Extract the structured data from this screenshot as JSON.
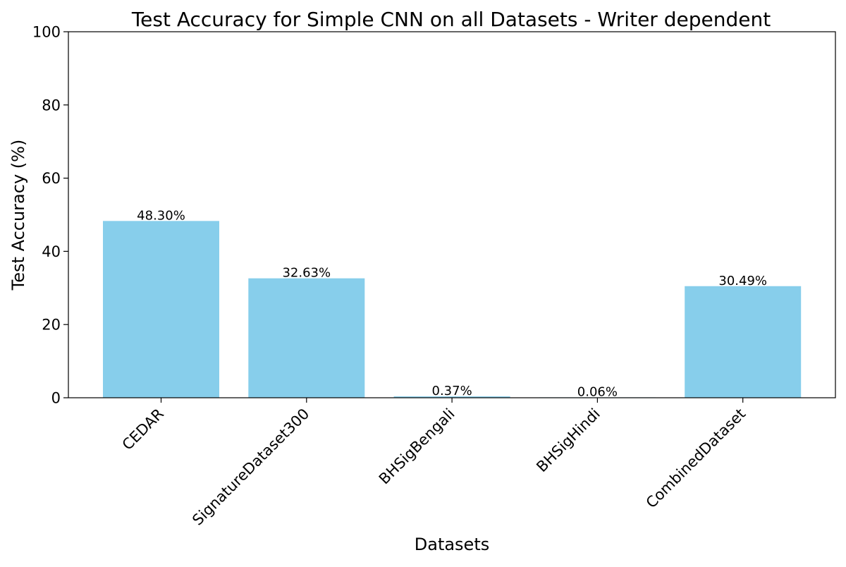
{
  "chart_data": {
    "type": "bar",
    "title": "Test Accuracy for Simple CNN on all Datasets - Writer dependent",
    "xlabel": "Datasets",
    "ylabel": "Test Accuracy (%)",
    "categories": [
      "CEDAR",
      "SignatureDataset300",
      "BHSigBengali",
      "BHSigHindi",
      "CombinedDataset"
    ],
    "values": [
      48.3,
      32.63,
      0.37,
      0.06,
      30.49
    ],
    "value_labels": [
      "48.30%",
      "32.63%",
      "0.37%",
      "0.06%",
      "30.49%"
    ],
    "ylim": [
      0,
      100
    ],
    "yticks": [
      0,
      20,
      40,
      60,
      80,
      100
    ],
    "bar_color": "#87ceeb",
    "grid": false,
    "legend": "none"
  }
}
